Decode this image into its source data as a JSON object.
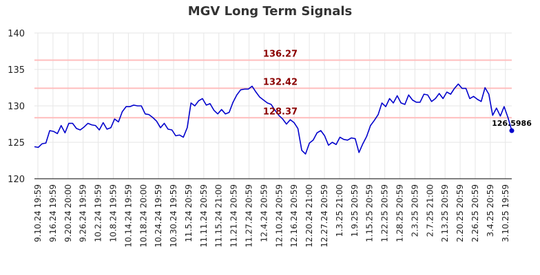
{
  "chart_data": {
    "type": "line",
    "title": "MGV Long Term Signals",
    "ylim": [
      120,
      140
    ],
    "yticks": [
      120,
      125,
      130,
      135,
      140
    ],
    "grid": true,
    "xtick_labels": [
      "9.10.24 19:59",
      "9.16.24 19:59",
      "9.20.24 20:00",
      "9.26.24 19:59",
      "10.2.24 19:59",
      "10.8.24 19:59",
      "10.14.24 19:59",
      "10.18.24 20:00",
      "10.24.24 19:59",
      "10.30.24 19:59",
      "11.5.24 20:59",
      "11.11.24 20:59",
      "11.15.24 21:00",
      "11.21.24 20:59",
      "11.27.24 20:59",
      "12.4.24 20:59",
      "12.10.24 20:59",
      "12.16.24 20:59",
      "12.20.24 21:00",
      "12.27.24 20:59",
      "1.3.25 21:00",
      "1.9.25 20:59",
      "1.15.25 20:59",
      "1.22.25 20:59",
      "1.28.25 20:59",
      "2.3.25 20:59",
      "2.7.25 21:00",
      "2.13.25 20:59",
      "2.20.25 20:59",
      "2.26.25 20:59",
      "3.4.25 20:59",
      "3.10.25 19:59"
    ],
    "signal_lines": [
      {
        "value": 136.27,
        "label": "136.27"
      },
      {
        "value": 132.42,
        "label": "132.42"
      },
      {
        "value": 128.37,
        "label": "128.37"
      }
    ],
    "last_value_label": "126.5986",
    "series": [
      {
        "color": "#0000cc",
        "values": [
          124.4,
          124.3,
          124.8,
          124.9,
          126.6,
          126.5,
          126.2,
          127.3,
          126.3,
          127.6,
          127.6,
          126.9,
          126.7,
          127.1,
          127.6,
          127.4,
          127.3,
          126.7,
          127.7,
          126.8,
          127.0,
          128.2,
          127.8,
          129.2,
          129.9,
          129.9,
          130.1,
          130.0,
          130.0,
          128.9,
          128.8,
          128.4,
          127.9,
          127.0,
          127.6,
          126.8,
          126.7,
          125.9,
          126.0,
          125.7,
          127.0,
          130.4,
          130.0,
          130.7,
          131.0,
          130.1,
          130.3,
          129.4,
          128.9,
          129.5,
          128.9,
          129.1,
          130.5,
          131.5,
          132.2,
          132.3,
          132.3,
          132.7,
          131.9,
          131.2,
          130.8,
          130.4,
          130.2,
          129.4,
          128.7,
          128.2,
          127.5,
          128.1,
          127.7,
          126.9,
          123.9,
          123.4,
          124.9,
          125.3,
          126.3,
          126.6,
          125.9,
          124.6,
          125.0,
          124.7,
          125.7,
          125.4,
          125.3,
          125.6,
          125.5,
          123.6,
          124.8,
          125.8,
          127.3,
          128.0,
          128.8,
          130.4,
          129.9,
          131.0,
          130.4,
          131.4,
          130.4,
          130.2,
          131.5,
          130.8,
          130.5,
          130.5,
          131.6,
          131.5,
          130.6,
          131.0,
          131.7,
          131.0,
          131.9,
          131.6,
          132.4,
          133.0,
          132.4,
          132.4,
          131.0,
          131.3,
          130.9,
          130.6,
          132.5,
          131.6,
          128.7,
          129.7,
          128.6,
          129.9,
          128.4,
          126.6
        ]
      }
    ]
  }
}
